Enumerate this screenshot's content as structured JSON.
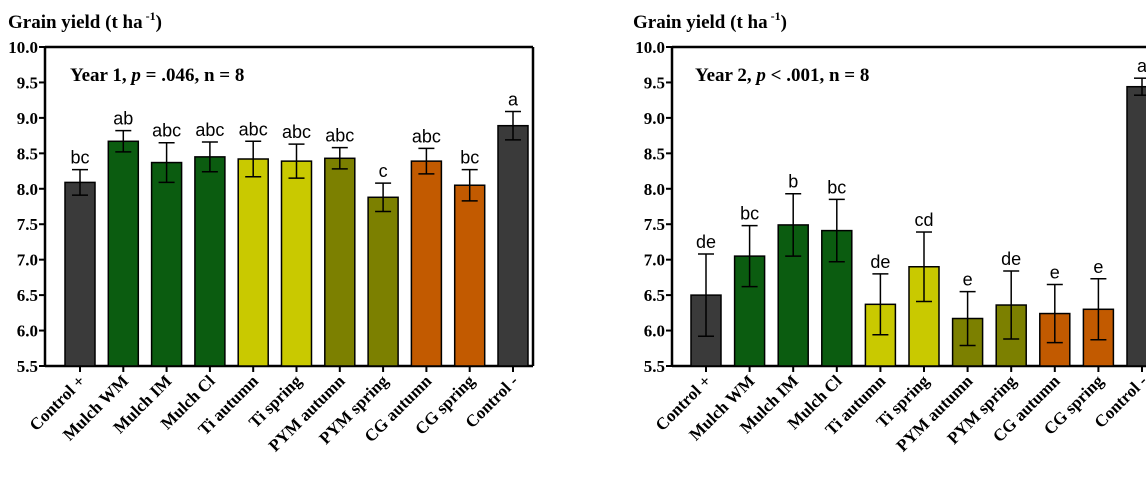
{
  "chart_data": [
    {
      "type": "bar",
      "ylabel_main": "Grain yield (t ha",
      "ylabel_sup": "-1",
      "ylabel_close": ")",
      "annotation": {
        "prefix": "Year 1, ",
        "p_italic": "p",
        "suffix": " = .046, n = 8"
      },
      "ylim": [
        5.5,
        10.0
      ],
      "yticks": [
        "5.5",
        "6.0",
        "6.5",
        "7.0",
        "7.5",
        "8.0",
        "8.5",
        "9.0",
        "9.5",
        "10.0"
      ],
      "categories": [
        "Control +",
        "Mulch WM",
        "Mulch IM",
        "Mulch Cl",
        "Ti autumn",
        "Ti spring",
        "PYM autumn",
        "PYM spring",
        "CG autumn",
        "CG spring",
        "Control -"
      ],
      "values": [
        8.09,
        8.67,
        8.37,
        8.45,
        8.42,
        8.39,
        8.43,
        7.88,
        8.39,
        8.05,
        8.89
      ],
      "errors": [
        0.18,
        0.15,
        0.28,
        0.21,
        0.25,
        0.24,
        0.15,
        0.2,
        0.18,
        0.22,
        0.2
      ],
      "letters": [
        "bc",
        "ab",
        "abc",
        "abc",
        "abc",
        "abc",
        "abc",
        "c",
        "abc",
        "bc",
        "a"
      ],
      "colors": [
        "#3a3a3a",
        "#0b5c10",
        "#0b5c10",
        "#0b5c10",
        "#c9c900",
        "#c9c900",
        "#7c8000",
        "#7c8000",
        "#c25a00",
        "#c25a00",
        "#3a3a3a"
      ]
    },
    {
      "type": "bar",
      "ylabel_main": "Grain yield (t ha",
      "ylabel_sup": "-1",
      "ylabel_close": ")",
      "annotation": {
        "prefix": "Year 2, ",
        "p_italic": "p",
        "suffix": " < .001, n = 8"
      },
      "ylim": [
        5.5,
        10.0
      ],
      "yticks": [
        "5.5",
        "6.0",
        "6.5",
        "7.0",
        "7.5",
        "8.0",
        "8.5",
        "9.0",
        "9.5",
        "10.0"
      ],
      "categories": [
        "Control +",
        "Mulch WM",
        "Mulch IM",
        "Mulch Cl",
        "Ti autumn",
        "Ti spring",
        "PYM autumn",
        "PYM spring",
        "CG autumn",
        "CG spring",
        "Control -"
      ],
      "values": [
        6.5,
        7.05,
        7.49,
        7.41,
        6.37,
        6.9,
        6.17,
        6.36,
        6.24,
        6.3,
        9.44
      ],
      "errors": [
        0.58,
        0.43,
        0.44,
        0.44,
        0.43,
        0.49,
        0.38,
        0.48,
        0.41,
        0.43,
        0.12
      ],
      "letters": [
        "de",
        "bc",
        "b",
        "bc",
        "de",
        "cd",
        "e",
        "de",
        "e",
        "e",
        "a"
      ],
      "colors": [
        "#3a3a3a",
        "#0b5c10",
        "#0b5c10",
        "#0b5c10",
        "#c9c900",
        "#c9c900",
        "#7c8000",
        "#7c8000",
        "#c25a00",
        "#c25a00",
        "#3a3a3a"
      ]
    }
  ]
}
